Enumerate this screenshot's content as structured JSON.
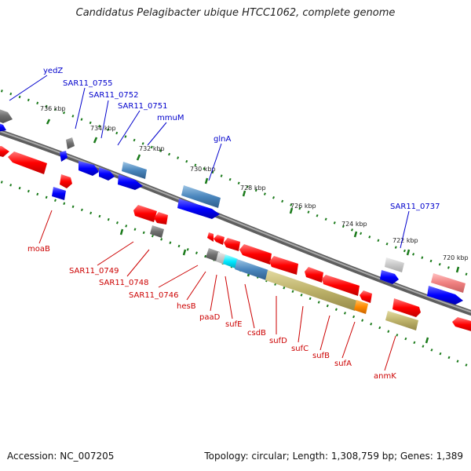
{
  "title": "Candidatus Pelagibacter ubique HTCC1062, complete genome",
  "footer": {
    "accession": "Accession: NC_007205",
    "summary": "Topology: circular; Length: 1,308,759 bp; Genes: 1,389"
  },
  "scale_labels": [
    "736 kbp",
    "734 kbp",
    "732 kbp",
    "730 kbp",
    "728 kbp",
    "726 kbp",
    "724 kbp",
    "722 kbp",
    "720 kbp"
  ],
  "forward_gene_labels": [
    "yedZ",
    "SAR11_0755",
    "SAR11_0752",
    "SAR11_0751",
    "mmuM",
    "glnA",
    "SAR11_0737"
  ],
  "reverse_gene_labels": [
    "moaB",
    "SAR11_0749",
    "SAR11_0748",
    "SAR11_0746",
    "hesB",
    "paaD",
    "sufE",
    "csdB",
    "sufD",
    "sufC",
    "sufB",
    "sufA",
    "anmK"
  ],
  "colors": {
    "forward_label": "#0000cc",
    "reverse_label": "#cc0000",
    "backbone": "#808080",
    "ticks": "#1a7a1a",
    "cds_forward": "#0000ff",
    "cds_reverse": "#ff0000",
    "pseudo": "#808080"
  }
}
